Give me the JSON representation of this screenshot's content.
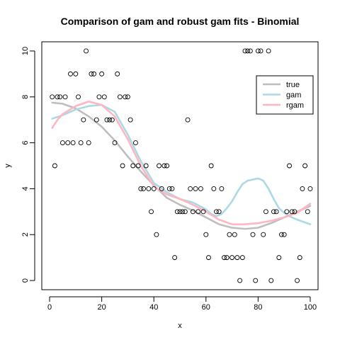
{
  "chart_data": {
    "type": "scatter",
    "title": "Comparison of gam and robust gam fits - Binomial",
    "xlabel": "x",
    "ylabel": "y",
    "xlim": [
      -3,
      103
    ],
    "ylim": [
      -0.4,
      10.4
    ],
    "x_ticks": [
      0,
      20,
      40,
      60,
      80,
      100
    ],
    "x_tick_labels": [
      "0",
      "20",
      "40",
      "60",
      "80",
      "100"
    ],
    "y_ticks": [
      0,
      2,
      4,
      6,
      8,
      10
    ],
    "y_tick_labels": [
      "0",
      "2",
      "4",
      "6",
      "8",
      "10"
    ],
    "grid": false,
    "legend_position": "top-right",
    "points": [
      [
        1,
        8
      ],
      [
        2,
        5
      ],
      [
        3,
        8
      ],
      [
        4,
        8
      ],
      [
        5,
        6
      ],
      [
        6,
        8
      ],
      [
        7,
        6
      ],
      [
        8,
        9
      ],
      [
        9,
        6
      ],
      [
        10,
        9
      ],
      [
        11,
        8
      ],
      [
        12,
        6
      ],
      [
        13,
        7
      ],
      [
        14,
        10
      ],
      [
        15,
        6
      ],
      [
        16,
        9
      ],
      [
        17,
        9
      ],
      [
        18,
        7
      ],
      [
        19,
        8
      ],
      [
        20,
        9
      ],
      [
        21,
        8
      ],
      [
        22,
        7
      ],
      [
        23,
        7
      ],
      [
        24,
        7
      ],
      [
        25,
        6
      ],
      [
        26,
        9
      ],
      [
        27,
        8
      ],
      [
        28,
        5
      ],
      [
        29,
        8
      ],
      [
        30,
        8
      ],
      [
        31,
        7
      ],
      [
        32,
        5
      ],
      [
        33,
        6
      ],
      [
        34,
        5
      ],
      [
        35,
        4
      ],
      [
        36,
        4
      ],
      [
        37,
        5
      ],
      [
        38,
        4
      ],
      [
        39,
        3
      ],
      [
        40,
        4
      ],
      [
        41,
        2
      ],
      [
        42,
        5
      ],
      [
        43,
        4
      ],
      [
        44,
        5
      ],
      [
        45,
        5
      ],
      [
        46,
        4
      ],
      [
        47,
        4
      ],
      [
        48,
        1
      ],
      [
        49,
        3
      ],
      [
        50,
        3
      ],
      [
        51,
        3
      ],
      [
        52,
        3
      ],
      [
        53,
        7
      ],
      [
        54,
        4
      ],
      [
        55,
        3
      ],
      [
        56,
        4
      ],
      [
        57,
        3
      ],
      [
        58,
        4
      ],
      [
        59,
        3
      ],
      [
        60,
        2
      ],
      [
        61,
        1
      ],
      [
        62,
        5
      ],
      [
        63,
        4
      ],
      [
        64,
        3
      ],
      [
        65,
        3
      ],
      [
        66,
        4
      ],
      [
        67,
        1
      ],
      [
        68,
        1
      ],
      [
        69,
        2
      ],
      [
        70,
        1
      ],
      [
        71,
        2
      ],
      [
        72,
        1
      ],
      [
        73,
        0
      ],
      [
        74,
        1
      ],
      [
        75,
        10
      ],
      [
        76,
        10
      ],
      [
        77,
        10
      ],
      [
        78,
        2
      ],
      [
        79,
        0
      ],
      [
        80,
        10
      ],
      [
        81,
        10
      ],
      [
        82,
        2
      ],
      [
        83,
        3
      ],
      [
        84,
        10
      ],
      [
        85,
        0
      ],
      [
        86,
        3
      ],
      [
        87,
        3
      ],
      [
        88,
        1
      ],
      [
        89,
        2
      ],
      [
        90,
        2
      ],
      [
        91,
        3
      ],
      [
        92,
        5
      ],
      [
        93,
        3
      ],
      [
        94,
        3
      ],
      [
        95,
        0
      ],
      [
        96,
        1
      ],
      [
        97,
        4
      ],
      [
        98,
        5
      ],
      [
        99,
        3
      ],
      [
        100,
        4
      ]
    ],
    "series": [
      {
        "name": "true",
        "color": "#bebebe",
        "x": [
          1,
          5,
          10,
          15,
          20,
          25,
          30,
          35,
          40,
          45,
          50,
          55,
          60,
          65,
          70,
          75,
          80,
          85,
          90,
          95,
          100
        ],
        "y": [
          7.75,
          7.7,
          7.5,
          7.15,
          6.7,
          6.1,
          5.4,
          4.75,
          4.15,
          3.6,
          3.3,
          3.05,
          2.75,
          2.45,
          2.3,
          2.25,
          2.3,
          2.5,
          2.75,
          3.0,
          3.25
        ]
      },
      {
        "name": "gam",
        "color": "#add8e6",
        "x": [
          1,
          5,
          10,
          15,
          20,
          25,
          30,
          35,
          40,
          45,
          50,
          55,
          60,
          62,
          64,
          66,
          68,
          70,
          72,
          74,
          76,
          78,
          80,
          82,
          84,
          86,
          88,
          90,
          92,
          95,
          100
        ],
        "y": [
          7.05,
          7.2,
          7.45,
          7.6,
          7.65,
          7.35,
          6.35,
          5.2,
          4.25,
          3.85,
          3.55,
          3.4,
          3.1,
          2.9,
          2.8,
          2.9,
          3.15,
          3.45,
          3.85,
          4.2,
          4.35,
          4.4,
          4.45,
          4.35,
          4.0,
          3.55,
          3.15,
          2.95,
          2.8,
          2.65,
          2.45
        ]
      },
      {
        "name": "rgam",
        "color": "#ffb6c1",
        "x": [
          1,
          3,
          5,
          10,
          15,
          20,
          25,
          30,
          35,
          40,
          45,
          50,
          55,
          60,
          65,
          70,
          75,
          80,
          85,
          90,
          95,
          100
        ],
        "y": [
          6.65,
          7.0,
          7.25,
          7.6,
          7.8,
          7.65,
          7.15,
          6.15,
          5.0,
          4.1,
          3.75,
          3.55,
          3.3,
          3.0,
          2.65,
          2.45,
          2.45,
          2.5,
          2.6,
          2.75,
          2.95,
          3.35
        ]
      }
    ]
  }
}
